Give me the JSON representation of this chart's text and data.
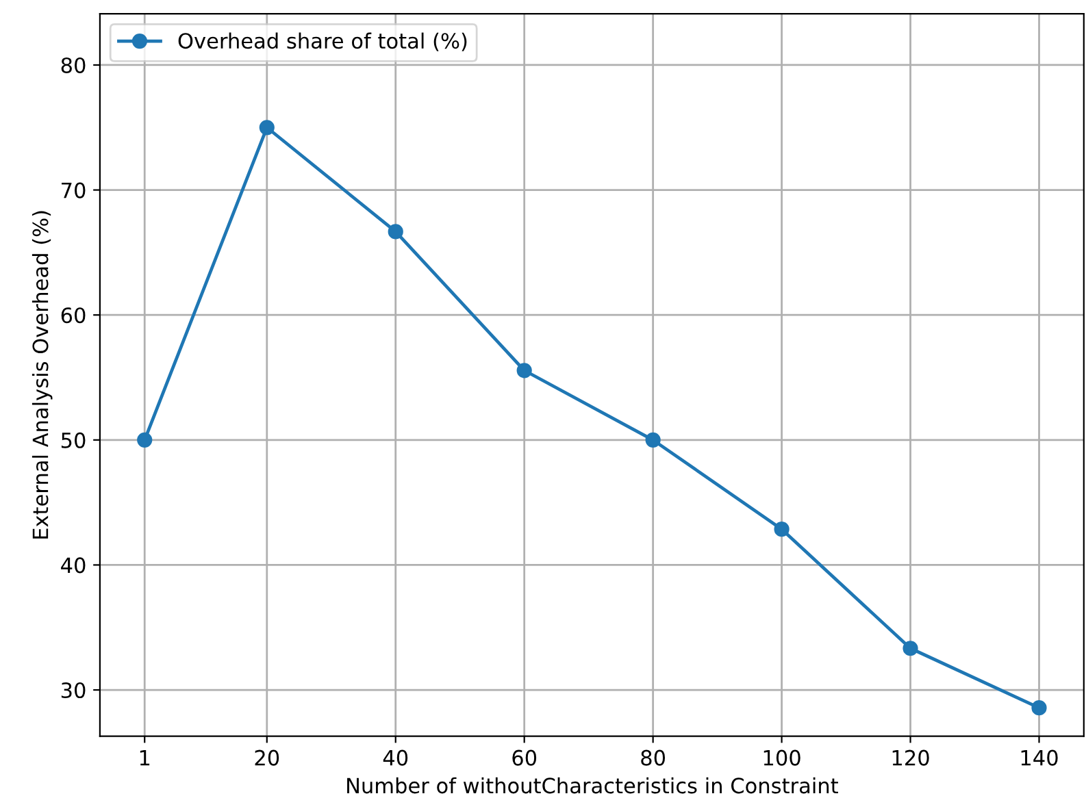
{
  "chart_data": {
    "type": "line",
    "xlabel": "Number of withoutCharacteristics in Constraint",
    "ylabel": "External Analysis Overhead (%)",
    "x": [
      1,
      20,
      40,
      60,
      80,
      100,
      120,
      140
    ],
    "series": [
      {
        "name": "Overhead share of total (%)",
        "color": "#1f77b4",
        "values": [
          50,
          75,
          66.67,
          55.56,
          50,
          42.86,
          33.33,
          28.57
        ]
      }
    ],
    "xlim": [
      -5.95,
      146.95
    ],
    "ylim": [
      26.3,
      84.1
    ],
    "xticks": [
      1,
      20,
      40,
      60,
      80,
      100,
      120,
      140
    ],
    "yticks": [
      30,
      40,
      50,
      60,
      70,
      80
    ],
    "grid": true,
    "legend": "top left",
    "marker": "circle",
    "line_style": "solid"
  }
}
